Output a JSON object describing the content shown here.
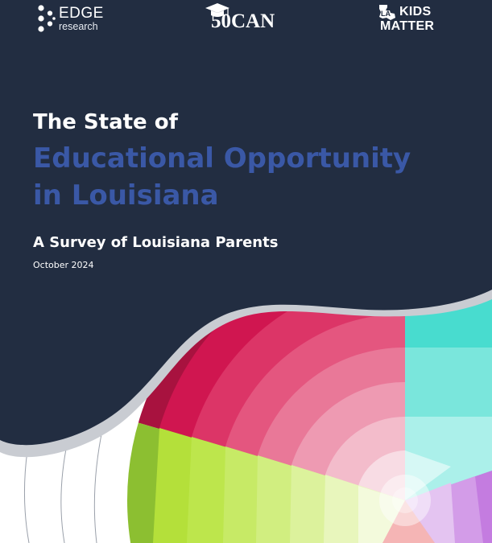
{
  "logos": {
    "edge": {
      "main": "EDGE",
      "sub": "research",
      "icon": "edge-dots-icon"
    },
    "fiftycan": {
      "text": "50CAN",
      "icon": "graduation-cap-icon"
    },
    "lakids": {
      "line1": "KIDS",
      "line2": "MATTER",
      "icon": "louisiana-shape-icon"
    }
  },
  "title": {
    "line1": "The State of",
    "line2": "Educational Opportunity",
    "line3": "in Louisiana"
  },
  "subtitle": "A Survey of Louisiana Parents",
  "date": "October 2024",
  "colors": {
    "navy": "#222d41",
    "title_blue": "#3a58a6",
    "magenta": "#d81b55",
    "lime": "#93c83c",
    "teal": "#1fd3c3",
    "lavender": "#c57be0",
    "coral": "#f4a0a0"
  }
}
